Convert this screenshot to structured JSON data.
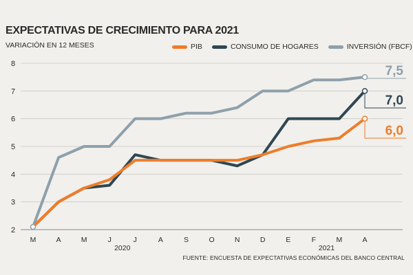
{
  "title": "EXPECTATIVAS DE CRECIMIENTO PARA 2021",
  "subtitle": "VARIACIÓN EN 12 MESES",
  "source": "FUENTE: ENCUESTA DE EXPECTATIVAS ECONÓMICAS DEL BANCO CENTRAL",
  "chart_data": {
    "type": "line",
    "x": [
      "M",
      "A",
      "M",
      "J",
      "J",
      "A",
      "S",
      "O",
      "N",
      "D",
      "E",
      "F",
      "M",
      "A"
    ],
    "year_labels": [
      {
        "label": "2020",
        "at": 3.5
      },
      {
        "label": "2021",
        "at": 11.5
      }
    ],
    "ylim": [
      2,
      8
    ],
    "yticks": [
      "2",
      "3",
      "4",
      "5",
      "6",
      "7",
      "8"
    ],
    "grid": true,
    "legend_position": "top-right",
    "series": [
      {
        "name": "PIB",
        "color": "#ee7d2b",
        "values": [
          2.1,
          3.0,
          3.5,
          3.8,
          4.5,
          4.5,
          4.5,
          4.5,
          4.5,
          4.7,
          5.0,
          5.2,
          5.3,
          6.0
        ],
        "end_label": "6,0"
      },
      {
        "name": "CONSUMO DE HOGARES",
        "color": "#2f4753",
        "values": [
          2.1,
          3.0,
          3.5,
          3.6,
          4.7,
          4.5,
          4.5,
          4.5,
          4.3,
          4.7,
          6.0,
          6.0,
          6.0,
          7.0
        ],
        "end_label": "7,0"
      },
      {
        "name": "INVERSIÓN (FBCF)",
        "color": "#8ea0ab",
        "values": [
          2.1,
          4.6,
          5.0,
          5.0,
          6.0,
          6.0,
          6.2,
          6.2,
          6.4,
          7.0,
          7.0,
          7.4,
          7.4,
          7.5
        ],
        "end_label": "7,5"
      }
    ]
  }
}
